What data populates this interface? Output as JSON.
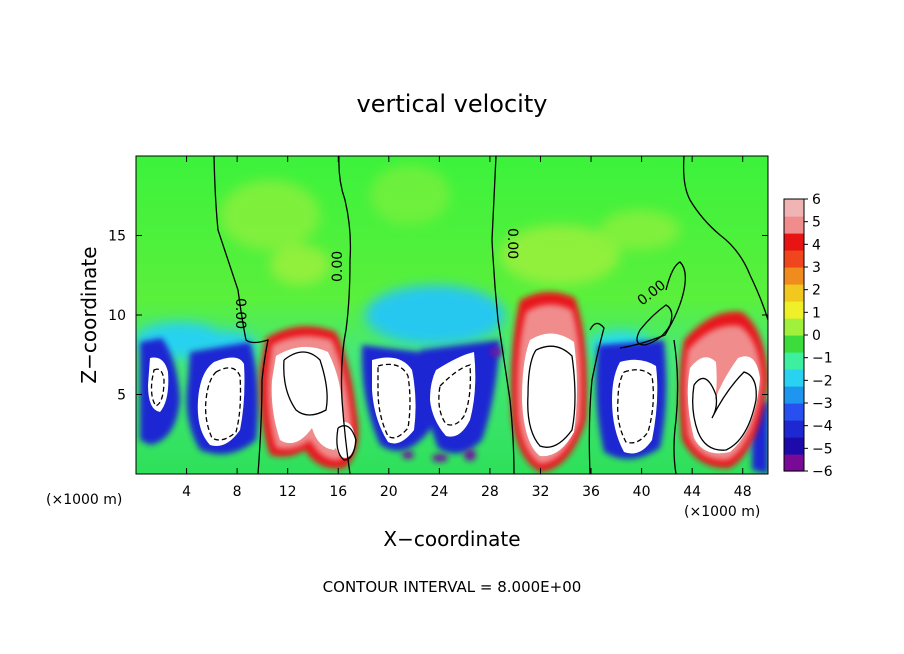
{
  "chart_data": {
    "type": "heatmap",
    "title": "vertical velocity",
    "xlabel": "X−coordinate",
    "ylabel": "Z−coordinate",
    "x_unit_left": "(×1000 m)",
    "x_unit_right": "(×1000 m)",
    "xlim": [
      0,
      50
    ],
    "ylim": [
      0,
      20
    ],
    "x_ticks": [
      4,
      8,
      12,
      16,
      20,
      24,
      28,
      32,
      36,
      40,
      44,
      48
    ],
    "y_ticks": [
      5,
      10,
      15
    ],
    "colorbar": {
      "min": -6,
      "max": 6,
      "ticks": [
        6,
        5,
        4,
        3,
        2,
        1,
        0,
        -1,
        -2,
        -3,
        -4,
        -5,
        -6
      ],
      "tick_labels": [
        "6",
        "5",
        "4",
        "3",
        "2",
        "1",
        "0",
        "−1",
        "−2",
        "−3",
        "−4",
        "−5",
        "−6"
      ]
    },
    "contour_labels": [
      "0.00",
      "0.00",
      "0.00",
      "0.00"
    ],
    "footer": "CONTOUR INTERVAL = 8.000E+00",
    "cells": [
      {
        "x": 1.5,
        "z": 5.5,
        "w": -6
      },
      {
        "x": 7,
        "z": 5,
        "w": -5
      },
      {
        "x": 13.5,
        "z": 5,
        "w": 6
      },
      {
        "x": 16.5,
        "z": 2,
        "w": 6
      },
      {
        "x": 20,
        "z": 5.5,
        "w": -5
      },
      {
        "x": 25,
        "z": 5,
        "w": -5
      },
      {
        "x": 32.5,
        "z": 5,
        "w": 6
      },
      {
        "x": 39.5,
        "z": 5,
        "w": -5
      },
      {
        "x": 46,
        "z": 5,
        "w": 6
      }
    ]
  }
}
